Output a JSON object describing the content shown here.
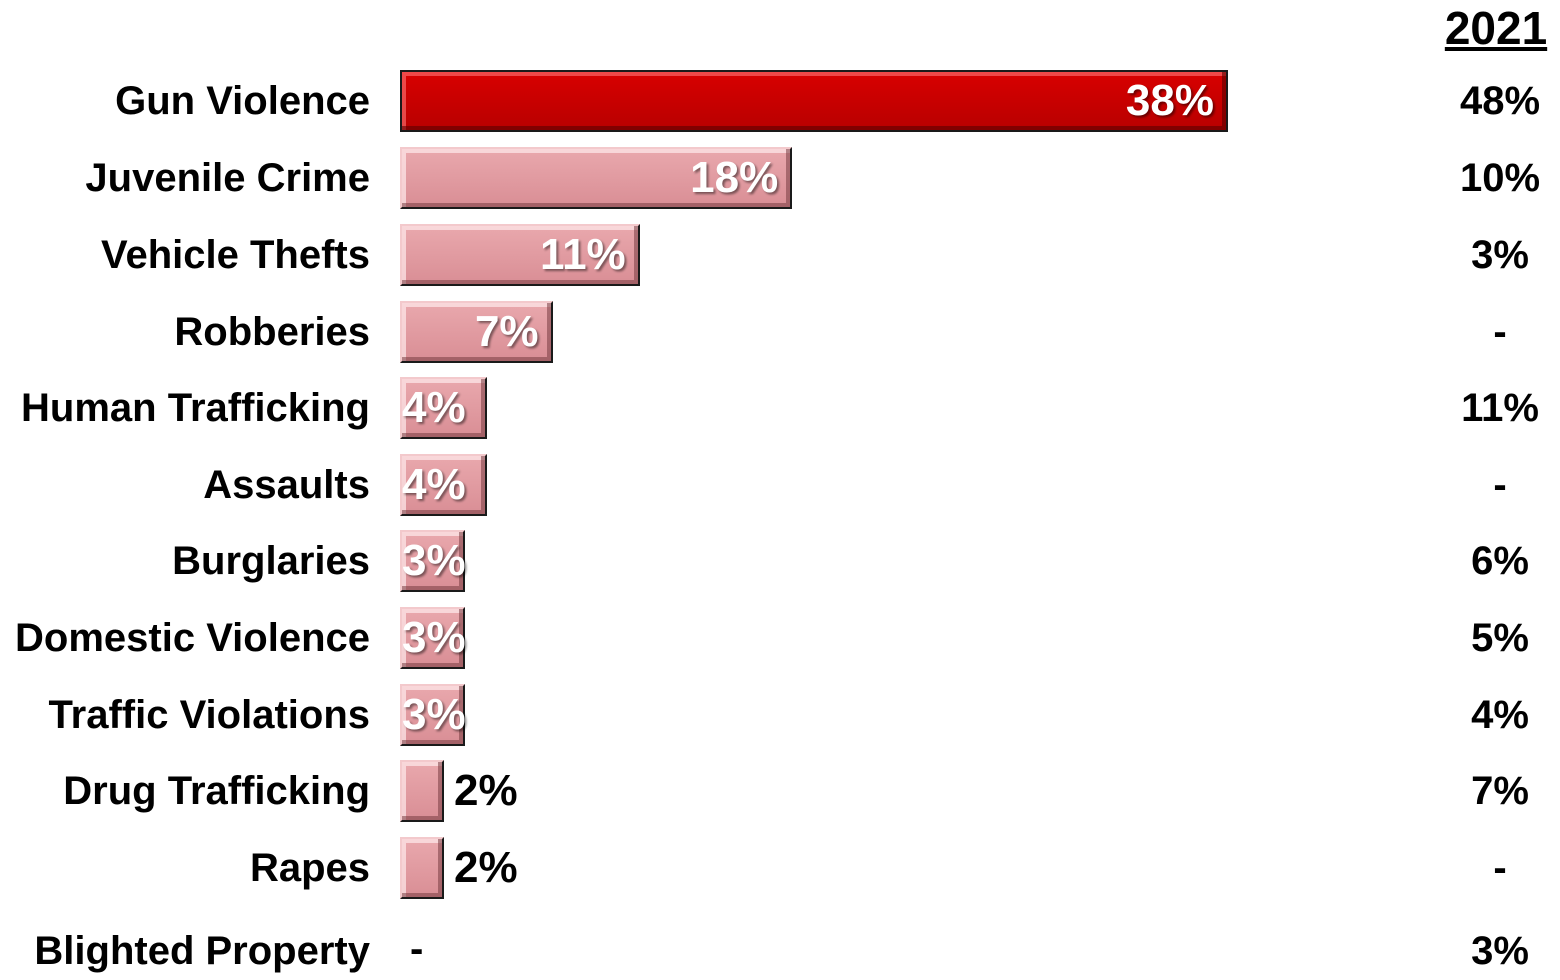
{
  "chart_data": {
    "type": "bar",
    "orientation": "horizontal",
    "categories": [
      "Gun Violence",
      "Juvenile Crime",
      "Vehicle Thefts",
      "Robberies",
      "Human Trafficking",
      "Assaults",
      "Burglaries",
      "Domestic Violence",
      "Traffic Violations",
      "Drug Trafficking",
      "Rapes",
      "Blighted Property"
    ],
    "values": [
      38,
      18,
      11,
      7,
      4,
      4,
      3,
      3,
      3,
      2,
      2,
      null
    ],
    "value_labels": [
      "38%",
      "18%",
      "11%",
      "7%",
      "4%",
      "4%",
      "3%",
      "3%",
      "3%",
      "2%",
      "2%",
      "-"
    ],
    "prior_year": {
      "header": "2021",
      "values": [
        "48%",
        "10%",
        "3%",
        "-",
        "11%",
        "-",
        "6%",
        "5%",
        "4%",
        "7%",
        "-",
        "3%"
      ]
    },
    "highlight_index": 0,
    "colors": {
      "highlight": "#c00000",
      "bar": "#e0a0a6",
      "border": "#1a1a1a"
    },
    "xlim": [
      0,
      38
    ]
  }
}
